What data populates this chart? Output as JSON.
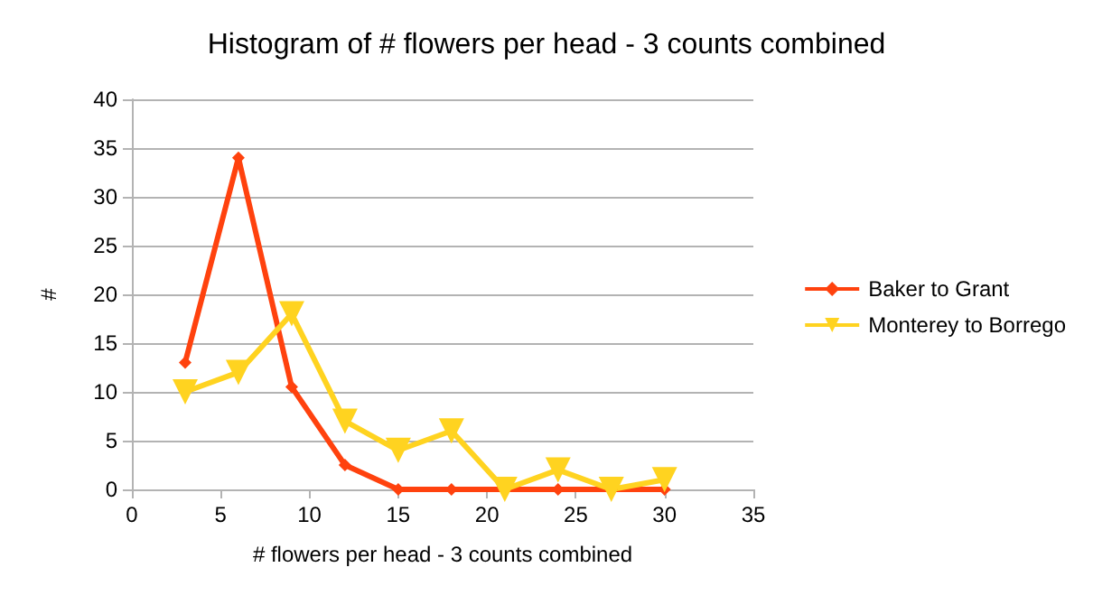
{
  "chart_data": {
    "type": "line",
    "title": "Histogram of # flowers per head - 3 counts combined",
    "xlabel": "# flowers per head - 3 counts combined",
    "ylabel": "#",
    "x": [
      3,
      6,
      9,
      12,
      15,
      18,
      21,
      24,
      27,
      30
    ],
    "series": [
      {
        "name": "Baker to Grant",
        "color": "#ff420e",
        "marker": "diamond",
        "values": [
          13,
          34,
          10.5,
          2.5,
          0,
          0,
          0,
          0,
          0,
          0
        ]
      },
      {
        "name": "Monterey to Borrego",
        "color": "#ffd320",
        "marker": "triangle-down",
        "values": [
          10,
          12,
          18,
          7,
          4,
          6,
          0,
          2,
          0,
          1
        ]
      }
    ],
    "xlim": [
      0,
      35
    ],
    "xticks": [
      0,
      5,
      10,
      15,
      20,
      25,
      30,
      35
    ],
    "ylim": [
      0,
      40
    ],
    "yticks": [
      0,
      5,
      10,
      15,
      20,
      25,
      30,
      35,
      40
    ],
    "grid": "y",
    "legend": "right"
  }
}
